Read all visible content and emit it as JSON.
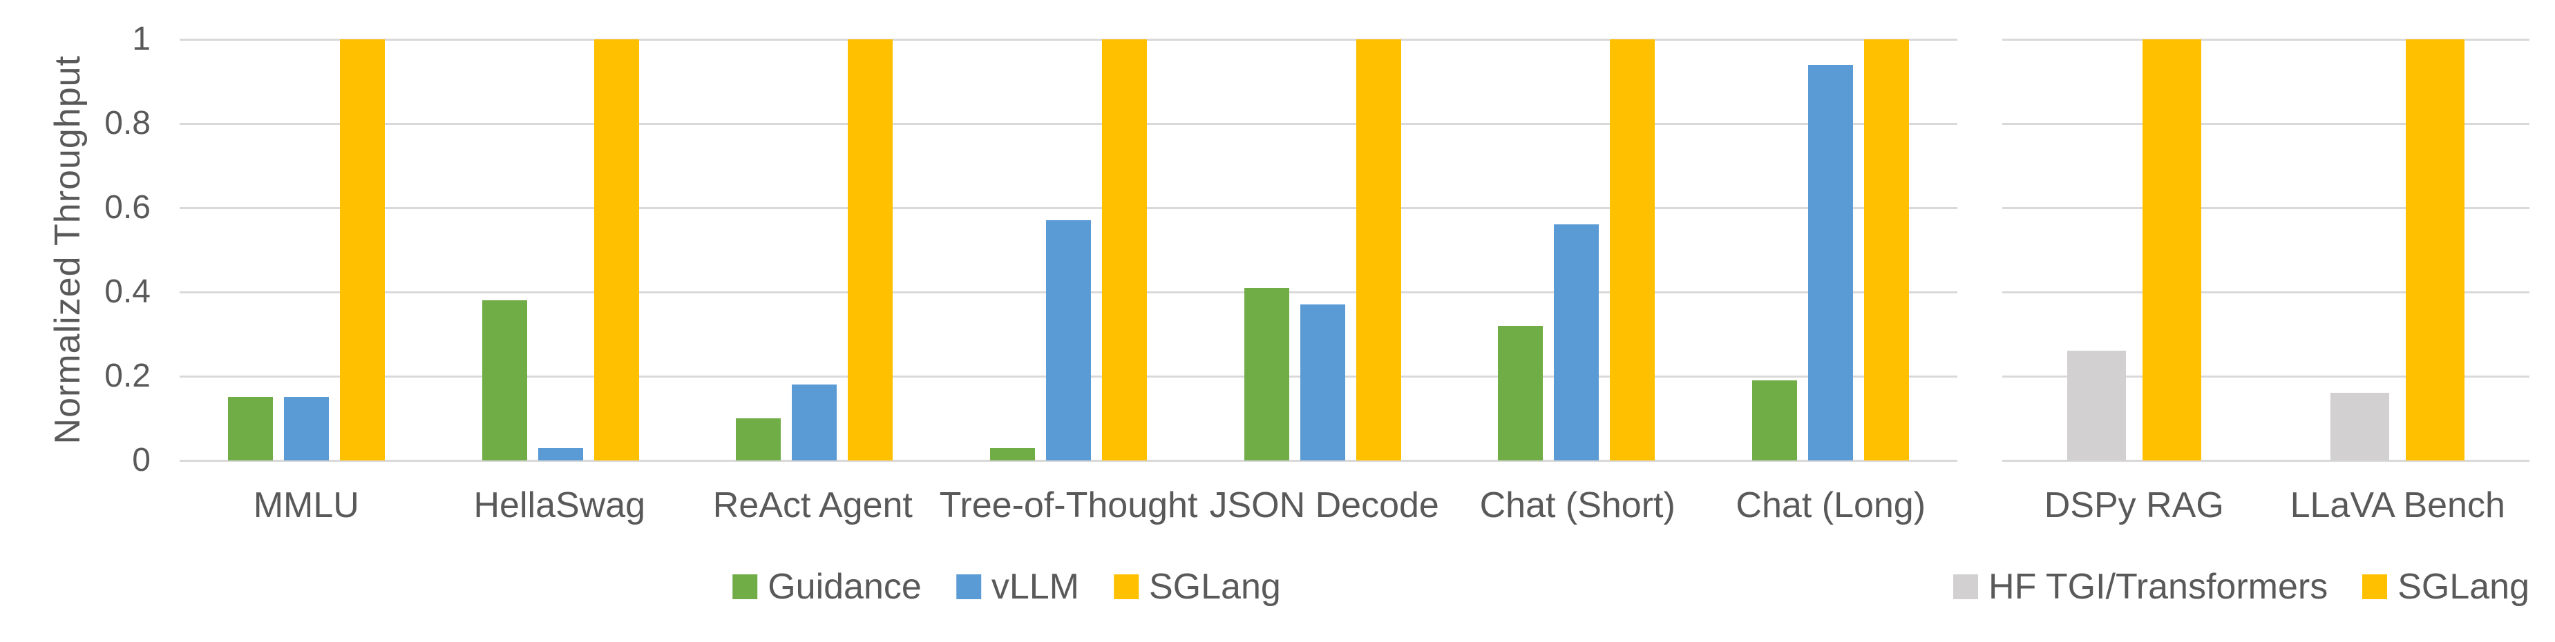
{
  "y_axis": {
    "title": "Normalized Throughput",
    "tick_labels": [
      "1",
      "0.8",
      "0.6",
      "0.4",
      "0.2",
      "0"
    ],
    "tick_values": [
      1,
      0.8,
      0.6,
      0.4,
      0.2,
      0
    ],
    "range": [
      0,
      1
    ]
  },
  "colors": {
    "guidance": "#70ad47",
    "vllm": "#5b9bd5",
    "sglang": "#ffc000",
    "hf_tgi_transformers": "#d2d0d0",
    "text": "#595959",
    "gridline": "#d9d9d9"
  },
  "chart_data": [
    {
      "type": "bar",
      "name": "left-benchmarks",
      "categories": [
        "MMLU",
        "HellaSwag",
        "ReAct Agent",
        "Tree-of-Thought",
        "JSON Decode",
        "Chat (Short)",
        "Chat (Long)"
      ],
      "series": [
        {
          "name": "Guidance",
          "color_key": "guidance",
          "values": [
            0.15,
            0.38,
            0.1,
            0.03,
            0.41,
            0.32,
            0.19
          ]
        },
        {
          "name": "vLLM",
          "color_key": "vllm",
          "values": [
            0.15,
            0.03,
            0.18,
            0.57,
            0.37,
            0.56,
            0.94
          ]
        },
        {
          "name": "SGLang",
          "color_key": "sglang",
          "values": [
            1,
            1,
            1,
            1,
            1,
            1,
            1
          ]
        }
      ],
      "ylabel": "Normalized Throughput",
      "ylim": [
        0,
        1
      ],
      "grid": true,
      "legend_position": "bottom-center"
    },
    {
      "type": "bar",
      "name": "right-benchmarks",
      "categories": [
        "DSPy RAG",
        "LLaVA Bench"
      ],
      "series": [
        {
          "name": "HF TGI/Transformers",
          "color_key": "hf_tgi_transformers",
          "values": [
            0.26,
            0.16
          ]
        },
        {
          "name": "SGLang",
          "color_key": "sglang",
          "values": [
            1,
            1
          ]
        }
      ],
      "ylabel": "",
      "ylim": [
        0,
        1
      ],
      "grid": true,
      "legend_position": "bottom-right"
    }
  ]
}
